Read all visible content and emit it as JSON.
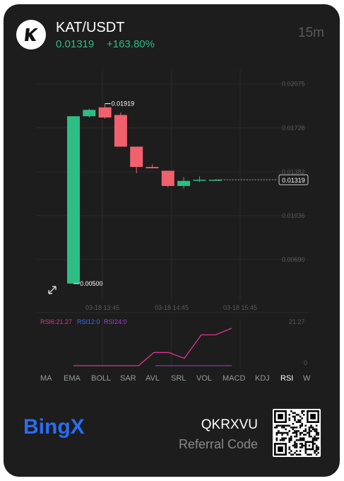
{
  "header": {
    "pair": "KAT/USDT",
    "price": "0.01319",
    "change": "+163.80%",
    "interval": "15m"
  },
  "chart_data": {
    "type": "candlestick",
    "price_axis": [
      "0.02075",
      "0.01728",
      "0.01382",
      "0.01036",
      "0.00690"
    ],
    "time_axis": [
      "03-18 13:45",
      "03-18 14:45",
      "03-18 15:45"
    ],
    "ylim": [
      0.0036,
      0.0219
    ],
    "last_price": "0.01319",
    "high_label": "0.01919",
    "low_label": "0.00500",
    "candles": [
      {
        "o": 0.005,
        "h": 0.0182,
        "l": 0.005,
        "c": 0.0182
      },
      {
        "o": 0.0182,
        "h": 0.0188,
        "l": 0.0181,
        "c": 0.0187
      },
      {
        "o": 0.0189,
        "h": 0.01919,
        "l": 0.018,
        "c": 0.0181
      },
      {
        "o": 0.0183,
        "h": 0.0185,
        "l": 0.0158,
        "c": 0.0158
      },
      {
        "o": 0.0158,
        "h": 0.0158,
        "l": 0.0137,
        "c": 0.0142
      },
      {
        "o": 0.0142,
        "h": 0.0144,
        "l": 0.0141,
        "c": 0.0141
      },
      {
        "o": 0.0139,
        "h": 0.0139,
        "l": 0.0126,
        "c": 0.0127
      },
      {
        "o": 0.0127,
        "h": 0.0134,
        "l": 0.0125,
        "c": 0.0131
      },
      {
        "o": 0.01319,
        "h": 0.01345,
        "l": 0.013,
        "c": 0.01319
      },
      {
        "o": 0.01319,
        "h": 0.01319,
        "l": 0.01319,
        "c": 0.01319
      }
    ],
    "rsi": {
      "labels": [
        "RSI6:21.27",
        "RSI12:0",
        "RSI24:0"
      ],
      "axis": [
        "21.27",
        "0"
      ],
      "rsi6_values": [
        0,
        0,
        0,
        0,
        0,
        0,
        7.5,
        7.5,
        4.2,
        17.5,
        17.5,
        21.27
      ],
      "ylim": [
        0,
        21.27
      ]
    },
    "colors": {
      "up": "#2ebd85",
      "down": "#f0616d",
      "rsi6": "#e0338f",
      "rsi12": "#3a6ff0",
      "rsi24": "#a63ce0"
    }
  },
  "tabs": [
    "MA",
    "EMA",
    "BOLL",
    "SAR",
    "AVL",
    "SRL",
    "VOL",
    "MACD",
    "KDJ",
    "RSI",
    "W"
  ],
  "active_tab": "RSI",
  "footer": {
    "brand": "BingX",
    "referral_code": "QKRXVU",
    "referral_label": "Referral Code"
  }
}
